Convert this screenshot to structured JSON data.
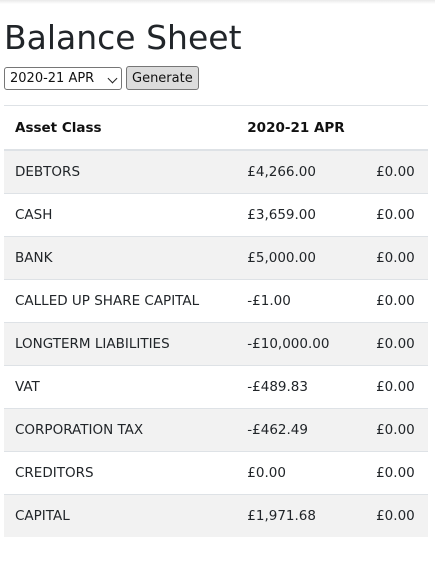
{
  "page": {
    "title": "Balance Sheet"
  },
  "controls": {
    "period_selected": "2020-21 APR",
    "generate_label": "Generate"
  },
  "table": {
    "headers": [
      "Asset Class",
      "2020-21 APR",
      ""
    ],
    "rows": [
      {
        "asset_class": "DEBTORS",
        "current": "£4,266.00",
        "other": "£0.00"
      },
      {
        "asset_class": "CASH",
        "current": "£3,659.00",
        "other": "£0.00"
      },
      {
        "asset_class": "BANK",
        "current": "£5,000.00",
        "other": "£0.00"
      },
      {
        "asset_class": "CALLED UP SHARE CAPITAL",
        "current": "-£1.00",
        "other": "£0.00"
      },
      {
        "asset_class": "LONGTERM LIABILITIES",
        "current": "-£10,000.00",
        "other": "£0.00"
      },
      {
        "asset_class": "VAT",
        "current": "-£489.83",
        "other": "£0.00"
      },
      {
        "asset_class": "CORPORATION TAX",
        "current": "-£462.49",
        "other": "£0.00"
      },
      {
        "asset_class": "CREDITORS",
        "current": "£0.00",
        "other": "£0.00"
      },
      {
        "asset_class": "CAPITAL",
        "current": "£1,971.68",
        "other": "£0.00"
      }
    ]
  }
}
